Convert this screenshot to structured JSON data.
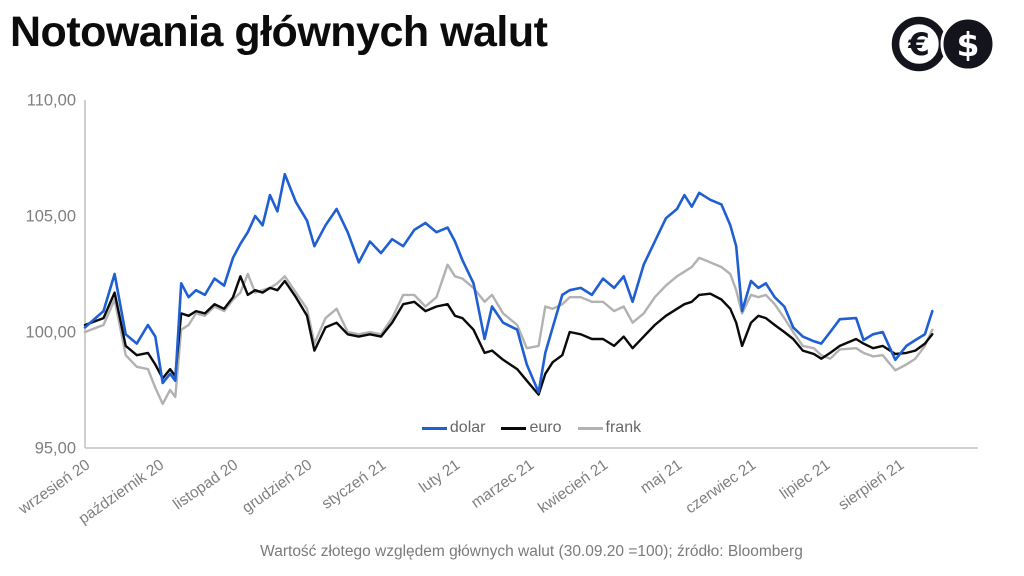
{
  "header": {
    "icons": [
      {
        "name": "euro-coin",
        "symbol": "€"
      },
      {
        "name": "dollar-coin",
        "symbol": "$"
      }
    ]
  },
  "chart_data": {
    "type": "line",
    "title": "Notowania głównych walut",
    "caption": "Wartość złotego względem głównych walut (30.09.20 =100); źródło: Bloomberg",
    "xlabel": "",
    "ylabel": "",
    "ylim": [
      95,
      110
    ],
    "y_ticks": [
      110,
      105,
      100,
      95
    ],
    "y_tick_labels": [
      "110,00",
      "105,00",
      "100,00",
      "95,00"
    ],
    "x_tick_labels": [
      "wrzesień 20",
      "październik 20",
      "listopad 20",
      "grudzień 20",
      "styczeń 21",
      "luty 21",
      "marzec 21",
      "kwiecień 21",
      "maj 21",
      "czerwiec 21",
      "lipiec 21",
      "sierpień 21"
    ],
    "x_unit": "months since 30.09.2020 (base = 100)",
    "grid": false,
    "legend_position": "bottom-center-inside",
    "colors": {
      "axis": "#c3c3c3",
      "tick_text": "#7f7f7f",
      "legend_text": "#666666",
      "title_text": "#0c0c0c"
    },
    "series": [
      {
        "name": "dolar",
        "color": "#1f5fd2",
        "points": [
          [
            0,
            100.2
          ],
          [
            0.25,
            100.9
          ],
          [
            0.4,
            102.5
          ],
          [
            0.55,
            99.9
          ],
          [
            0.7,
            99.5
          ],
          [
            0.85,
            100.3
          ],
          [
            0.95,
            99.8
          ],
          [
            1.05,
            97.8
          ],
          [
            1.15,
            98.2
          ],
          [
            1.22,
            97.9
          ],
          [
            1.3,
            102.1
          ],
          [
            1.4,
            101.5
          ],
          [
            1.5,
            101.8
          ],
          [
            1.62,
            101.6
          ],
          [
            1.75,
            102.3
          ],
          [
            1.88,
            102.0
          ],
          [
            2.0,
            103.2
          ],
          [
            2.1,
            103.8
          ],
          [
            2.2,
            104.3
          ],
          [
            2.3,
            105.0
          ],
          [
            2.4,
            104.6
          ],
          [
            2.5,
            105.9
          ],
          [
            2.6,
            105.2
          ],
          [
            2.7,
            106.8
          ],
          [
            2.85,
            105.6
          ],
          [
            3.0,
            104.8
          ],
          [
            3.1,
            103.7
          ],
          [
            3.25,
            104.6
          ],
          [
            3.4,
            105.3
          ],
          [
            3.55,
            104.3
          ],
          [
            3.7,
            103.0
          ],
          [
            3.85,
            103.9
          ],
          [
            4.0,
            103.4
          ],
          [
            4.15,
            104.0
          ],
          [
            4.3,
            103.7
          ],
          [
            4.45,
            104.4
          ],
          [
            4.6,
            104.7
          ],
          [
            4.75,
            104.3
          ],
          [
            4.9,
            104.5
          ],
          [
            5.0,
            103.9
          ],
          [
            5.1,
            103.1
          ],
          [
            5.25,
            102.1
          ],
          [
            5.4,
            99.7
          ],
          [
            5.5,
            101.1
          ],
          [
            5.65,
            100.4
          ],
          [
            5.84,
            100.1
          ],
          [
            5.97,
            98.6
          ],
          [
            6.13,
            97.4
          ],
          [
            6.22,
            99.1
          ],
          [
            6.32,
            100.2
          ],
          [
            6.45,
            101.6
          ],
          [
            6.55,
            101.8
          ],
          [
            6.7,
            101.9
          ],
          [
            6.85,
            101.6
          ],
          [
            7.0,
            102.3
          ],
          [
            7.15,
            101.9
          ],
          [
            7.28,
            102.4
          ],
          [
            7.4,
            101.3
          ],
          [
            7.55,
            102.9
          ],
          [
            7.7,
            103.9
          ],
          [
            7.85,
            104.9
          ],
          [
            8.0,
            105.3
          ],
          [
            8.1,
            105.9
          ],
          [
            8.2,
            105.4
          ],
          [
            8.3,
            106.0
          ],
          [
            8.45,
            105.7
          ],
          [
            8.6,
            105.5
          ],
          [
            8.72,
            104.6
          ],
          [
            8.8,
            103.7
          ],
          [
            8.88,
            100.9
          ],
          [
            9.0,
            102.2
          ],
          [
            9.1,
            101.9
          ],
          [
            9.2,
            102.1
          ],
          [
            9.32,
            101.5
          ],
          [
            9.45,
            101.1
          ],
          [
            9.57,
            100.2
          ],
          [
            9.7,
            99.8
          ],
          [
            9.85,
            99.6
          ],
          [
            9.95,
            99.5
          ],
          [
            10.07,
            100.0
          ],
          [
            10.2,
            100.55
          ],
          [
            10.42,
            100.6
          ],
          [
            10.52,
            99.65
          ],
          [
            10.65,
            99.9
          ],
          [
            10.78,
            100.0
          ],
          [
            10.95,
            98.8
          ],
          [
            11.1,
            99.4
          ],
          [
            11.22,
            99.65
          ],
          [
            11.35,
            99.9
          ],
          [
            11.45,
            100.9
          ]
        ]
      },
      {
        "name": "euro",
        "color": "#0a0a0a",
        "points": [
          [
            0,
            100.3
          ],
          [
            0.25,
            100.6
          ],
          [
            0.4,
            101.7
          ],
          [
            0.55,
            99.4
          ],
          [
            0.7,
            99.0
          ],
          [
            0.85,
            99.1
          ],
          [
            0.95,
            98.6
          ],
          [
            1.05,
            98.0
          ],
          [
            1.15,
            98.4
          ],
          [
            1.22,
            98.1
          ],
          [
            1.3,
            100.8
          ],
          [
            1.4,
            100.7
          ],
          [
            1.5,
            100.9
          ],
          [
            1.62,
            100.8
          ],
          [
            1.75,
            101.2
          ],
          [
            1.88,
            101.0
          ],
          [
            2.0,
            101.5
          ],
          [
            2.1,
            102.4
          ],
          [
            2.2,
            101.6
          ],
          [
            2.3,
            101.8
          ],
          [
            2.4,
            101.7
          ],
          [
            2.5,
            101.9
          ],
          [
            2.6,
            101.8
          ],
          [
            2.7,
            102.2
          ],
          [
            2.85,
            101.5
          ],
          [
            3.0,
            100.7
          ],
          [
            3.1,
            99.2
          ],
          [
            3.25,
            100.2
          ],
          [
            3.4,
            100.4
          ],
          [
            3.55,
            99.9
          ],
          [
            3.7,
            99.8
          ],
          [
            3.85,
            99.9
          ],
          [
            4.0,
            99.8
          ],
          [
            4.15,
            100.4
          ],
          [
            4.3,
            101.2
          ],
          [
            4.45,
            101.3
          ],
          [
            4.6,
            100.9
          ],
          [
            4.75,
            101.1
          ],
          [
            4.9,
            101.2
          ],
          [
            5.0,
            100.7
          ],
          [
            5.1,
            100.6
          ],
          [
            5.25,
            100.1
          ],
          [
            5.4,
            99.1
          ],
          [
            5.5,
            99.2
          ],
          [
            5.65,
            98.8
          ],
          [
            5.84,
            98.4
          ],
          [
            5.97,
            97.9
          ],
          [
            6.13,
            97.3
          ],
          [
            6.22,
            98.2
          ],
          [
            6.32,
            98.7
          ],
          [
            6.45,
            99.0
          ],
          [
            6.55,
            100.0
          ],
          [
            6.7,
            99.9
          ],
          [
            6.85,
            99.7
          ],
          [
            7.0,
            99.7
          ],
          [
            7.15,
            99.4
          ],
          [
            7.28,
            99.8
          ],
          [
            7.4,
            99.3
          ],
          [
            7.55,
            99.8
          ],
          [
            7.7,
            100.3
          ],
          [
            7.85,
            100.7
          ],
          [
            8.0,
            101.0
          ],
          [
            8.1,
            101.2
          ],
          [
            8.2,
            101.3
          ],
          [
            8.3,
            101.6
          ],
          [
            8.45,
            101.65
          ],
          [
            8.6,
            101.4
          ],
          [
            8.72,
            101.0
          ],
          [
            8.8,
            100.4
          ],
          [
            8.88,
            99.4
          ],
          [
            9.0,
            100.4
          ],
          [
            9.1,
            100.7
          ],
          [
            9.2,
            100.6
          ],
          [
            9.32,
            100.3
          ],
          [
            9.45,
            100.0
          ],
          [
            9.57,
            99.7
          ],
          [
            9.7,
            99.2
          ],
          [
            9.85,
            99.05
          ],
          [
            9.95,
            98.85
          ],
          [
            10.07,
            99.1
          ],
          [
            10.2,
            99.4
          ],
          [
            10.42,
            99.7
          ],
          [
            10.52,
            99.5
          ],
          [
            10.65,
            99.3
          ],
          [
            10.78,
            99.4
          ],
          [
            10.95,
            99.05
          ],
          [
            11.1,
            99.1
          ],
          [
            11.22,
            99.2
          ],
          [
            11.35,
            99.5
          ],
          [
            11.45,
            99.9
          ]
        ]
      },
      {
        "name": "frank",
        "color": "#b2b2b2",
        "points": [
          [
            0,
            100.0
          ],
          [
            0.25,
            100.3
          ],
          [
            0.4,
            101.4
          ],
          [
            0.55,
            99.0
          ],
          [
            0.7,
            98.5
          ],
          [
            0.85,
            98.4
          ],
          [
            0.95,
            97.6
          ],
          [
            1.05,
            96.9
          ],
          [
            1.15,
            97.5
          ],
          [
            1.22,
            97.2
          ],
          [
            1.3,
            100.1
          ],
          [
            1.4,
            100.3
          ],
          [
            1.5,
            100.8
          ],
          [
            1.62,
            100.7
          ],
          [
            1.75,
            101.1
          ],
          [
            1.88,
            100.9
          ],
          [
            2.0,
            101.4
          ],
          [
            2.1,
            101.7
          ],
          [
            2.2,
            102.5
          ],
          [
            2.3,
            101.7
          ],
          [
            2.4,
            101.8
          ],
          [
            2.5,
            101.9
          ],
          [
            2.6,
            102.1
          ],
          [
            2.7,
            102.4
          ],
          [
            2.85,
            101.7
          ],
          [
            3.0,
            101.0
          ],
          [
            3.1,
            99.5
          ],
          [
            3.25,
            100.6
          ],
          [
            3.4,
            101.0
          ],
          [
            3.55,
            100.0
          ],
          [
            3.7,
            99.9
          ],
          [
            3.85,
            100.0
          ],
          [
            4.0,
            99.9
          ],
          [
            4.15,
            100.6
          ],
          [
            4.3,
            101.6
          ],
          [
            4.45,
            101.6
          ],
          [
            4.6,
            101.1
          ],
          [
            4.75,
            101.5
          ],
          [
            4.9,
            102.9
          ],
          [
            5.0,
            102.4
          ],
          [
            5.1,
            102.3
          ],
          [
            5.25,
            101.9
          ],
          [
            5.4,
            101.3
          ],
          [
            5.5,
            101.6
          ],
          [
            5.65,
            100.8
          ],
          [
            5.84,
            100.3
          ],
          [
            5.97,
            99.3
          ],
          [
            6.13,
            99.4
          ],
          [
            6.22,
            101.1
          ],
          [
            6.32,
            101.0
          ],
          [
            6.45,
            101.2
          ],
          [
            6.55,
            101.5
          ],
          [
            6.7,
            101.5
          ],
          [
            6.85,
            101.3
          ],
          [
            7.0,
            101.3
          ],
          [
            7.15,
            100.9
          ],
          [
            7.28,
            101.1
          ],
          [
            7.4,
            100.4
          ],
          [
            7.55,
            100.8
          ],
          [
            7.7,
            101.5
          ],
          [
            7.85,
            102.0
          ],
          [
            8.0,
            102.4
          ],
          [
            8.1,
            102.6
          ],
          [
            8.2,
            102.8
          ],
          [
            8.3,
            103.2
          ],
          [
            8.45,
            103.0
          ],
          [
            8.6,
            102.8
          ],
          [
            8.72,
            102.5
          ],
          [
            8.8,
            101.8
          ],
          [
            8.88,
            100.8
          ],
          [
            9.0,
            101.6
          ],
          [
            9.1,
            101.5
          ],
          [
            9.2,
            101.6
          ],
          [
            9.32,
            101.2
          ],
          [
            9.45,
            100.6
          ],
          [
            9.57,
            100.0
          ],
          [
            9.7,
            99.4
          ],
          [
            9.85,
            99.3
          ],
          [
            9.95,
            99.0
          ],
          [
            10.07,
            98.85
          ],
          [
            10.2,
            99.25
          ],
          [
            10.42,
            99.3
          ],
          [
            10.52,
            99.1
          ],
          [
            10.65,
            98.95
          ],
          [
            10.78,
            99.0
          ],
          [
            10.95,
            98.35
          ],
          [
            11.1,
            98.6
          ],
          [
            11.22,
            98.85
          ],
          [
            11.35,
            99.4
          ],
          [
            11.45,
            100.1
          ]
        ]
      }
    ]
  }
}
